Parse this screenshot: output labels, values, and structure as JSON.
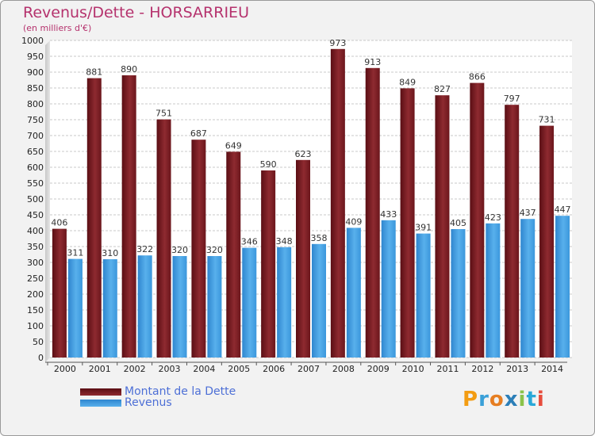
{
  "title": "Revenus/Dette - HORSARRIEU",
  "subtitle": "(en milliers d'€)",
  "logo": {
    "letters": [
      "P",
      "r",
      "o",
      "x",
      "i",
      "t",
      "i"
    ],
    "colors": [
      "#f39c12",
      "#3aa0d8",
      "#e67e22",
      "#2c7fb8",
      "#8bc34a",
      "#2aa8d8",
      "#e74c3c"
    ]
  },
  "colors": {
    "dette": "#7b1c22",
    "revenus": "#3b97dc",
    "title": "#b5326d",
    "legend_text": "#4d6fd6"
  },
  "chart_data": {
    "type": "bar",
    "title": "Revenus/Dette - HORSARRIEU",
    "ylabel": "(en milliers d'€)",
    "categories": [
      "2000",
      "2001",
      "2002",
      "2003",
      "2004",
      "2005",
      "2006",
      "2007",
      "2008",
      "2009",
      "2010",
      "2011",
      "2012",
      "2013",
      "2014"
    ],
    "series": [
      {
        "name": "Montant de la Dette",
        "values": [
          406,
          881,
          890,
          751,
          687,
          649,
          590,
          623,
          973,
          913,
          849,
          827,
          866,
          797,
          731
        ]
      },
      {
        "name": "Revenus",
        "values": [
          311,
          310,
          322,
          320,
          320,
          346,
          348,
          358,
          409,
          433,
          391,
          405,
          423,
          437,
          447
        ]
      }
    ],
    "ylim": [
      0,
      1000
    ],
    "yticks": [
      0,
      50,
      100,
      150,
      200,
      250,
      300,
      350,
      400,
      450,
      500,
      550,
      600,
      650,
      700,
      750,
      800,
      850,
      900,
      950,
      1000
    ],
    "grid": true,
    "legend_position": "bottom-left"
  }
}
